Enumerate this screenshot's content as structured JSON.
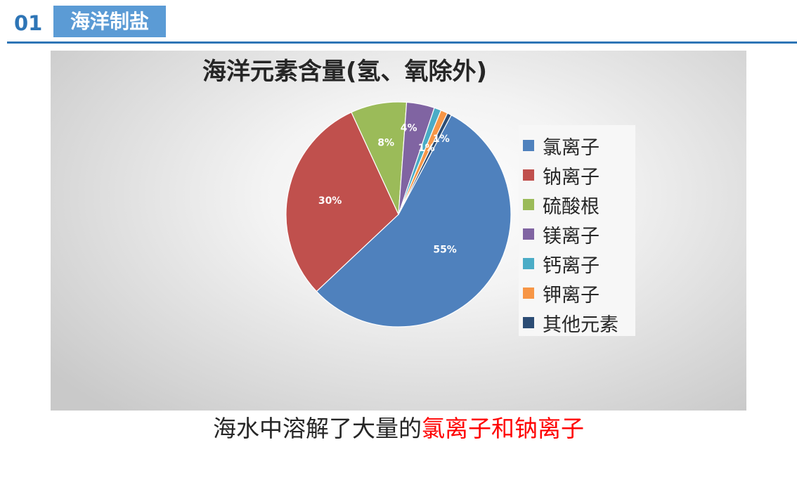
{
  "header": {
    "section_number": "01",
    "section_title": "海洋制盐"
  },
  "chart_data": {
    "type": "pie",
    "title": "海洋元素含量(氢、氧除外)",
    "legend_position": "right",
    "slices": [
      {
        "name": "氯离子",
        "value": 55,
        "label": "55%",
        "color": "#4f81bd"
      },
      {
        "name": "钠离子",
        "value": 30,
        "label": "30%",
        "color": "#c0504d"
      },
      {
        "name": "硫酸根",
        "value": 8,
        "label": "8%",
        "color": "#9bbb59"
      },
      {
        "name": "镁离子",
        "value": 4,
        "label": "4%",
        "color": "#8064a2"
      },
      {
        "name": "钙离子",
        "value": 1,
        "label": "1%",
        "color": "#4bacc6"
      },
      {
        "name": "钾离子",
        "value": 1,
        "label": "1%",
        "color": "#f79646"
      },
      {
        "name": "其他元素",
        "value": 0.6,
        "label": "1%",
        "color": "#2c4d75"
      }
    ]
  },
  "caption": {
    "normal": "海水中溶解了大量的",
    "highlight": "氯离子和钠离子"
  }
}
